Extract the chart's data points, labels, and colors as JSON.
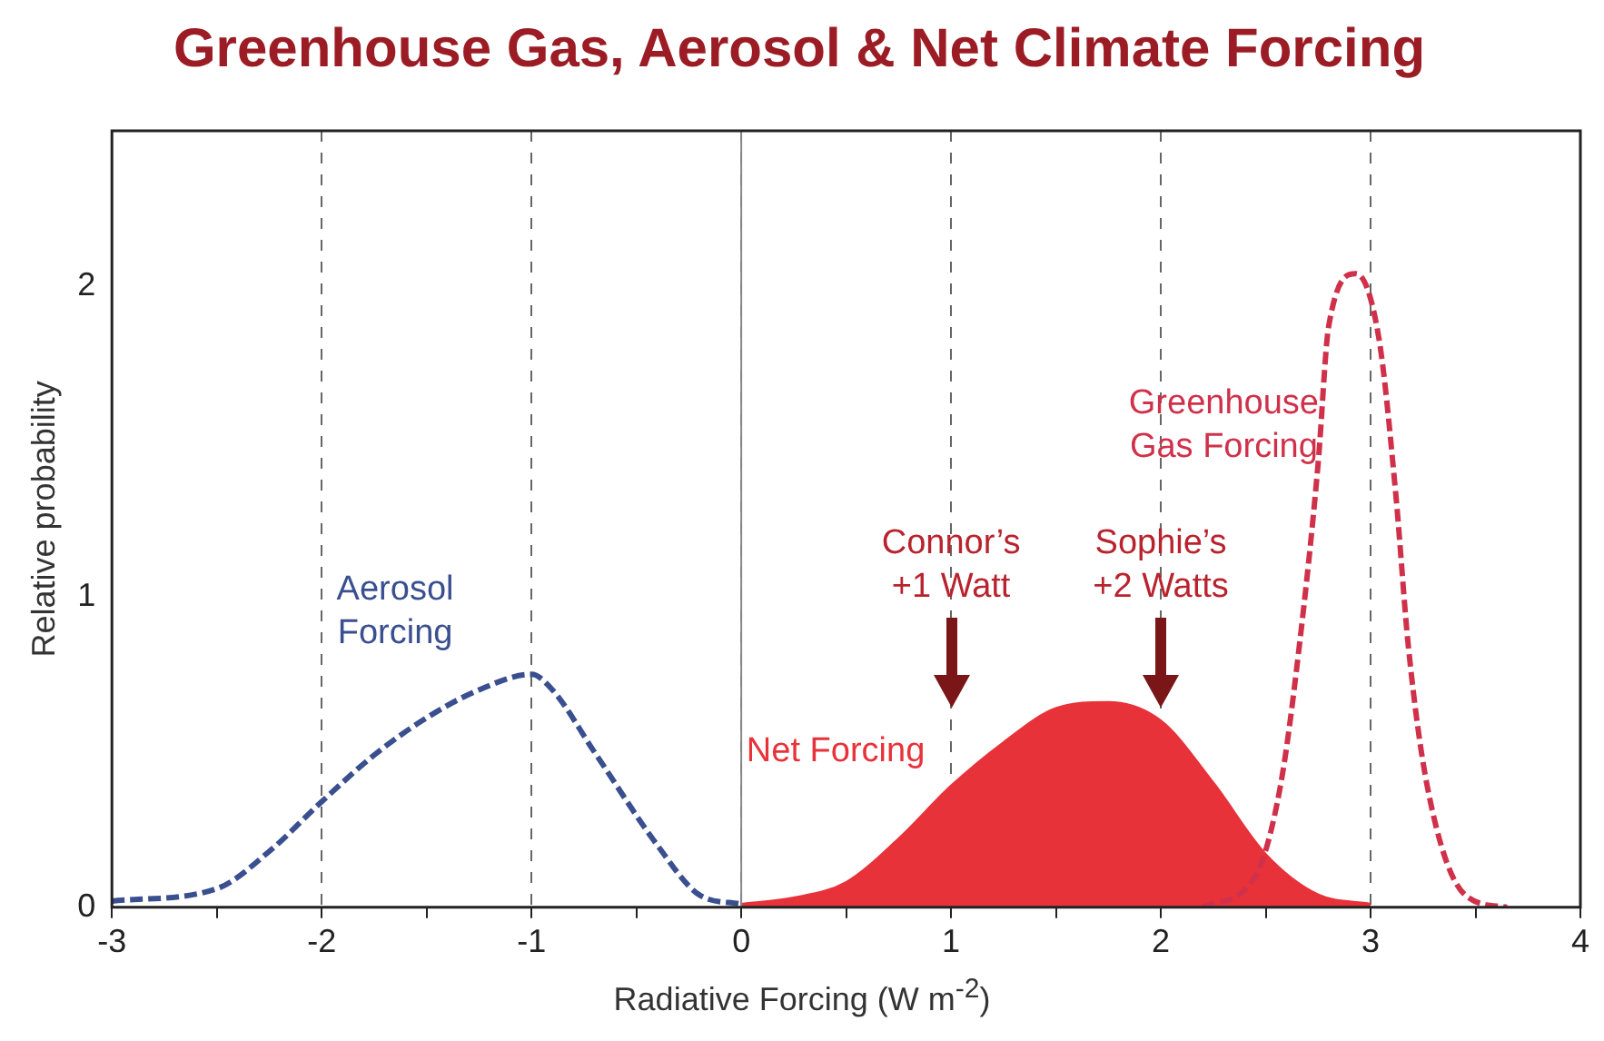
{
  "chart_data": {
    "type": "line",
    "title": "Greenhouse Gas, Aerosol & Net Climate Forcing",
    "xlabel": "Radiative Forcing  (W m$^{-2}$)",
    "ylabel": "Relative probability",
    "xlim": [
      -3,
      4
    ],
    "xticks": [
      -3,
      {
        "value": -2.5,
        "label": null
      },
      -2,
      {
        "value": -1.5,
        "label": null
      },
      -1,
      {
        "value": -0.5,
        "label": null
      },
      0,
      {
        "value": 0.5,
        "label": null
      },
      1,
      {
        "value": 1.5,
        "label": null
      },
      2,
      {
        "value": 2.5,
        "label": null
      },
      3,
      {
        "value": 3.5,
        "label": null
      },
      4
    ],
    "ylim": [
      0,
      2.5
    ],
    "yticks": [
      0,
      1,
      2
    ],
    "grid": "x",
    "marker": "none",
    "legend": false,
    "ref_lines": [
      {
        "axis": "x",
        "value": 0,
        "color": "#888888",
        "line_style": "solid"
      }
    ],
    "series": [
      {
        "name": "Aerosol Forcing",
        "line_style": "dashed",
        "color": "#3a4f8f",
        "x": [
          -3,
          -2.5,
          -2.25,
          -2,
          -1.75,
          -1.5,
          -1.25,
          -1,
          -0.9,
          -0.7,
          -0.4,
          -0.2,
          0
        ],
        "values": [
          0.02,
          0.06,
          0.18,
          0.34,
          0.49,
          0.61,
          0.7,
          0.75,
          0.7,
          0.5,
          0.2,
          0.04,
          0.01
        ]
      },
      {
        "name": "Net Forcing",
        "type": "area",
        "line_style": "solid",
        "color": "#e8323a",
        "x": [
          0,
          0.25,
          0.5,
          0.75,
          1,
          1.25,
          1.5,
          1.75,
          2,
          2.25,
          2.5,
          2.75,
          3
        ],
        "values": [
          0.01,
          0.03,
          0.08,
          0.22,
          0.39,
          0.53,
          0.64,
          0.66,
          0.6,
          0.4,
          0.17,
          0.04,
          0.01
        ]
      },
      {
        "name": "Greenhouse Gas Forcing",
        "line_style": "dashed",
        "color": "#d0314a",
        "x": [
          2.2,
          2.45,
          2.57,
          2.66,
          2.75,
          2.8,
          2.93,
          3.04,
          3.12,
          3.18,
          3.27,
          3.45,
          3.65
        ],
        "values": [
          0,
          0.1,
          0.39,
          0.84,
          1.43,
          1.87,
          2.04,
          1.83,
          1.33,
          0.84,
          0.39,
          0.04,
          0
        ]
      }
    ],
    "annotations": [
      "Connor’s +1 Watt",
      "Sophie’s +2 Watts"
    ]
  }
}
